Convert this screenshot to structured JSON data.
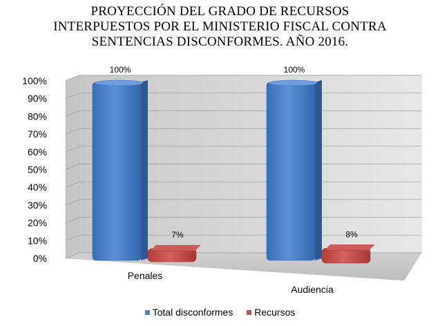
{
  "chart_data": {
    "type": "bar",
    "title_lines": [
      "PROYECCIÓN DEL GRADO DE RECURSOS",
      "INTERPUESTOS POR EL MINISTERIO FISCAL CONTRA",
      "SENTENCIAS DISCONFORMES. AÑO 2016."
    ],
    "categories": [
      "Penales",
      "Audiencia"
    ],
    "series": [
      {
        "name": "Total disconformes",
        "values": [
          100,
          100
        ],
        "labels": [
          "100%",
          "100%"
        ],
        "color": "#4f81bd"
      },
      {
        "name": "Recursos",
        "values": [
          7,
          8
        ],
        "labels": [
          "7%",
          "8%"
        ],
        "color": "#c0504d"
      }
    ],
    "y_ticks": [
      "0%",
      "10%",
      "20%",
      "30%",
      "40%",
      "50%",
      "60%",
      "70%",
      "80%",
      "90%",
      "100%"
    ],
    "ylim": [
      0,
      100
    ],
    "grid": true,
    "legend": "bottom",
    "style": "3d"
  }
}
